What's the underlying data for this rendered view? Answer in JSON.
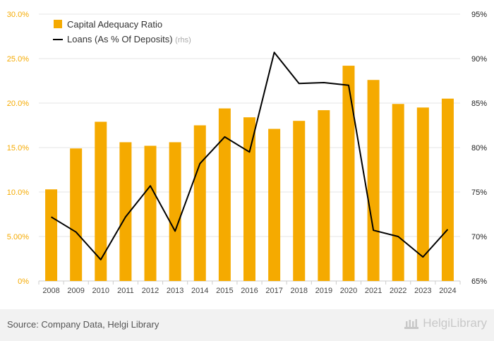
{
  "chart_data": {
    "type": "bar",
    "categories": [
      "2008",
      "2009",
      "2010",
      "2011",
      "2012",
      "2013",
      "2014",
      "2015",
      "2016",
      "2017",
      "2018",
      "2019",
      "2020",
      "2021",
      "2022",
      "2023",
      "2024"
    ],
    "series": [
      {
        "name": "Capital Adequacy Ratio",
        "type": "bar",
        "axis": "left",
        "color": "#f5aa00",
        "values": [
          10.3,
          14.9,
          17.9,
          15.6,
          15.2,
          15.6,
          17.5,
          19.4,
          18.4,
          17.1,
          18.0,
          19.2,
          24.2,
          22.6,
          19.9,
          19.5,
          20.5
        ]
      },
      {
        "name": "Loans (As % Of Deposits)",
        "name_suffix": "(rhs)",
        "type": "line",
        "axis": "right",
        "color": "#000000",
        "values": [
          72.2,
          70.5,
          67.4,
          72.2,
          75.7,
          70.6,
          78.2,
          81.2,
          79.5,
          90.7,
          87.2,
          87.3,
          87.0,
          70.7,
          70.0,
          67.7,
          70.8
        ]
      }
    ],
    "y_left": {
      "ylim": [
        0,
        30
      ],
      "ticks": [
        "0%",
        "5.00%",
        "10.0%",
        "15.0%",
        "20.0%",
        "25.0%",
        "30.0%"
      ],
      "tick_color": "#f5aa00"
    },
    "y_right": {
      "ylim": [
        65,
        95
      ],
      "ticks": [
        "65%",
        "70%",
        "75%",
        "80%",
        "85%",
        "90%",
        "95%"
      ]
    },
    "grid": true,
    "legend_position": "top-left",
    "title": "",
    "xlabel": "",
    "ylabel": ""
  },
  "footer": {
    "source": "Source: Company Data, Helgi Library",
    "brand": "HelgiLibrary"
  }
}
